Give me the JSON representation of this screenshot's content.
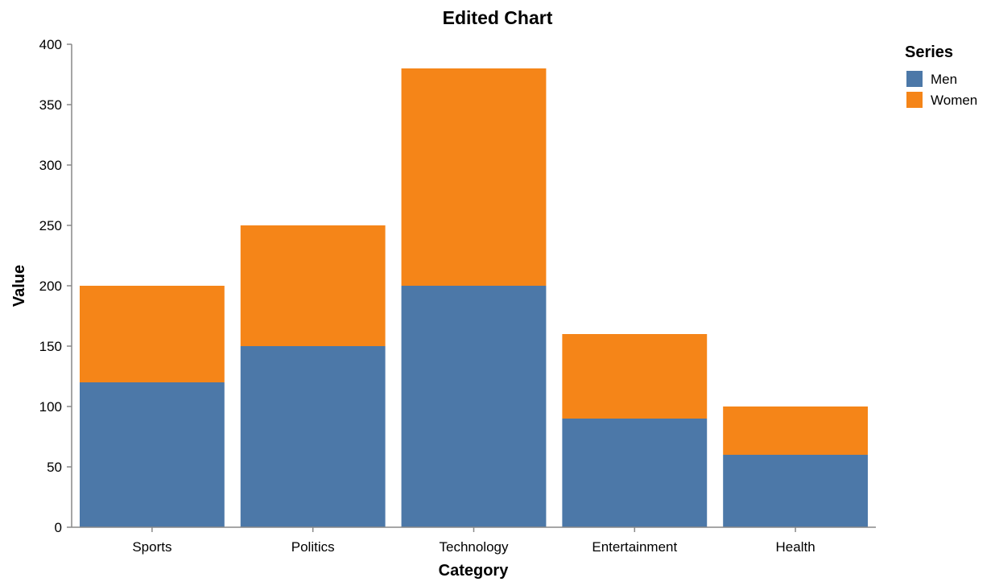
{
  "chart_data": {
    "type": "bar",
    "stacked": true,
    "title": "Edited Chart",
    "xlabel": "Category",
    "ylabel": "Value",
    "ylim": [
      0,
      400
    ],
    "yticks": [
      0,
      50,
      100,
      150,
      200,
      250,
      300,
      350,
      400
    ],
    "grid": false,
    "legend_placement": "top-right",
    "legend_title": "Series",
    "categories": [
      "Sports",
      "Politics",
      "Technology",
      "Entertainment",
      "Health"
    ],
    "series": [
      {
        "name": "Men",
        "color": "#4c78a8",
        "values": [
          120,
          150,
          200,
          90,
          60
        ]
      },
      {
        "name": "Women",
        "color": "#f58518",
        "values": [
          80,
          100,
          180,
          70,
          40
        ]
      }
    ]
  }
}
